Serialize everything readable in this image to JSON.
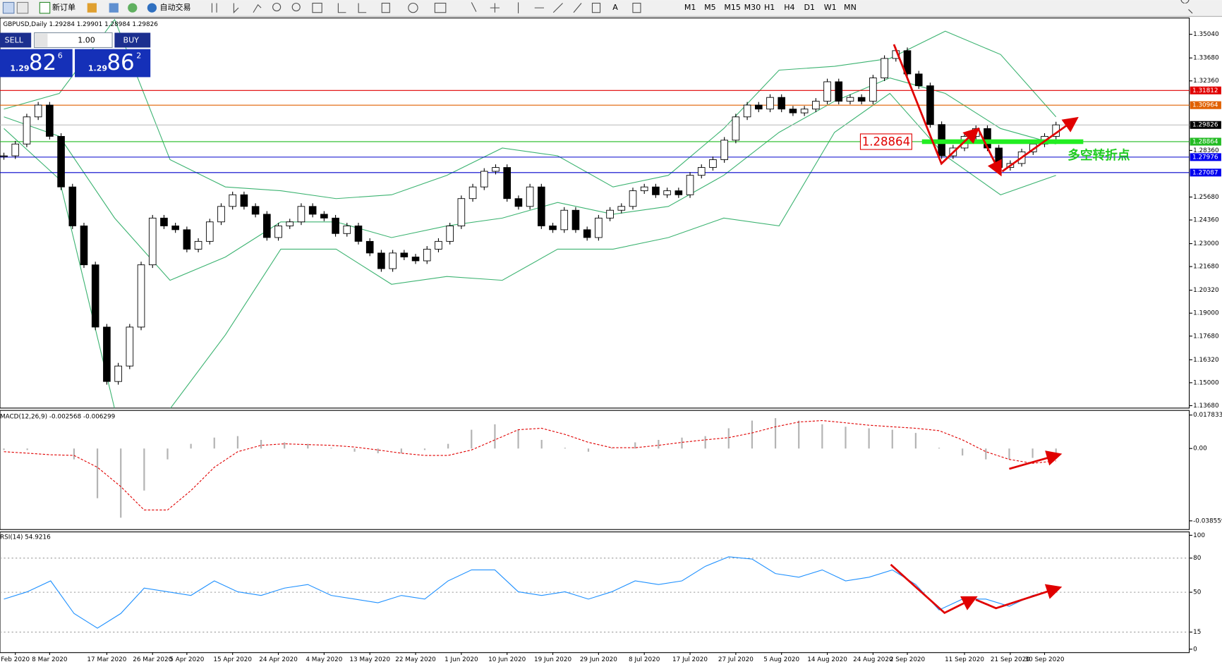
{
  "toolbar": {
    "new_order": "新订单",
    "auto_trading": "自动交易",
    "timeframes": [
      "M1",
      "M5",
      "M15",
      "M30",
      "H1",
      "H4",
      "D1",
      "W1",
      "MN"
    ]
  },
  "trade_panel": {
    "sell": "SELL",
    "buy": "BUY",
    "lot": "1.00",
    "sell_price": {
      "prefix": "1.29",
      "big": "82",
      "small": "6"
    },
    "buy_price": {
      "prefix": "1.29",
      "big": "86",
      "small": "2"
    }
  },
  "chart_data": [
    {
      "type": "candlestick",
      "title": "GBPUSD,Daily  1.29284 1.29901 1.28984 1.29826",
      "categories": [
        null,
        "Feb 2020",
        null,
        null,
        "8 Mar 2020",
        null,
        null,
        null,
        null,
        "17 Mar 2020",
        null,
        null,
        null,
        "26 Mar 2020",
        null,
        null,
        "5 Apr 2020",
        null,
        null,
        null,
        "15 Apr 2020",
        null,
        null,
        null,
        "24 Apr 2020",
        null,
        null,
        null,
        "4 May 2020",
        null,
        null,
        null,
        "13 May 2020",
        null,
        null,
        null,
        "22 May 2020",
        null,
        null,
        null,
        "1 Jun 2020",
        null,
        null,
        null,
        "10 Jun 2020",
        null,
        null,
        null,
        "19 Jun 2020",
        null,
        null,
        null,
        "29 Jun 2020",
        null,
        null,
        null,
        "8 Jul 2020",
        null,
        null,
        null,
        "17 Jul 2020",
        null,
        null,
        null,
        "27 Jul 2020",
        null,
        null,
        null,
        "5 Aug 2020",
        null,
        null,
        null,
        "14 Aug 2020",
        null,
        null,
        null,
        "24 Aug 2020",
        null,
        null,
        "2 Sep 2020",
        null,
        null,
        null,
        null,
        "11 Sep 2020",
        null,
        null,
        null,
        "21 Sep 2020",
        null,
        null,
        "30 Sep 2020",
        null
      ],
      "close": [
        1.2805,
        1.2873,
        1.3029,
        1.3097,
        1.2917,
        1.2626,
        1.2402,
        1.2178,
        1.182,
        1.1507,
        1.1596,
        1.182,
        1.2178,
        1.2447,
        1.2402,
        1.238,
        1.2268,
        1.2313,
        1.2425,
        1.2514,
        1.2581,
        1.2514,
        1.2469,
        1.2335,
        1.2402,
        1.2425,
        1.2514,
        1.2469,
        1.2447,
        1.2358,
        1.2402,
        1.2313,
        1.2246,
        1.2156,
        1.2246,
        1.2223,
        1.2201,
        1.2268,
        1.2313,
        1.2402,
        1.2559,
        1.2626,
        1.2716,
        1.2738,
        1.2559,
        1.2514,
        1.2626,
        1.2402,
        1.238,
        1.2492,
        1.238,
        1.2335,
        1.2447,
        1.2492,
        1.2514,
        1.2604,
        1.2626,
        1.2581,
        1.2604,
        1.2581,
        1.2693,
        1.2738,
        1.2783,
        1.2895,
        1.3029,
        1.3097,
        1.3074,
        1.3141,
        1.3074,
        1.3052,
        1.3074,
        1.3119,
        1.3231,
        1.3119,
        1.3141,
        1.3119,
        1.3253,
        1.3365,
        1.341,
        1.3276,
        1.3208,
        1.2985,
        1.2805,
        1.285,
        1.2917,
        1.2962,
        1.285,
        1.2738,
        1.2761,
        1.2828,
        1.2873,
        1.2917,
        1.2983
      ],
      "bands": {
        "color": "#3cb371",
        "upper": [
          1.3074,
          1.3164,
          1.3589,
          1.2783,
          1.2626,
          1.2604,
          1.2559,
          1.2581,
          1.2693,
          1.285,
          1.2805,
          1.2626,
          1.2693,
          1.2962,
          1.3298,
          1.332,
          1.3365,
          1.3522,
          1.3388,
          1.3029
        ],
        "middle": [
          1.3029,
          1.2917,
          1.2447,
          1.2089,
          1.2223,
          1.2425,
          1.2425,
          1.2335,
          1.2402,
          1.2447,
          1.2537,
          1.2469,
          1.2514,
          1.2693,
          1.294,
          1.3119,
          1.3253,
          1.3164,
          1.2962,
          1.2873
        ],
        "lower": [
          1.2962,
          1.2671,
          1.135,
          1.135,
          1.1775,
          1.2268,
          1.2268,
          1.2066,
          1.2111,
          1.2089,
          1.2268,
          1.2268,
          1.2335,
          1.2447,
          1.2402,
          1.294,
          1.3164,
          1.2805,
          1.2581,
          1.2693
        ]
      },
      "ylim": [
        1.1354,
        1.3598
      ],
      "yticks": [
        {
          "value": 1.3504,
          "label": "1.35040"
        },
        {
          "value": 1.3368,
          "label": "1.33680"
        },
        {
          "value": 1.3236,
          "label": "1.32360"
        },
        {
          "value": 1.2836,
          "label": "1.28360"
        },
        {
          "value": 1.2568,
          "label": "1.25680"
        },
        {
          "value": 1.2436,
          "label": "1.24360"
        },
        {
          "value": 1.23,
          "label": "1.23000"
        },
        {
          "value": 1.2168,
          "label": "1.21680"
        },
        {
          "value": 1.2032,
          "label": "1.20320"
        },
        {
          "value": 1.19,
          "label": "1.19000"
        },
        {
          "value": 1.1768,
          "label": "1.17680"
        },
        {
          "value": 1.1632,
          "label": "1.16320"
        },
        {
          "value": 1.15,
          "label": "1.15000"
        },
        {
          "value": 1.1368,
          "label": "1.13680"
        }
      ],
      "levels": [
        {
          "value": 1.31812,
          "color": "#e00000",
          "box": "#e00000"
        },
        {
          "value": 1.30964,
          "color": "#e06000",
          "box": "#e06000"
        },
        {
          "value": 1.29826,
          "color": "#b8b8b8",
          "box": "#000000"
        },
        {
          "value": 1.28864,
          "color": "#22bb22",
          "box": "#22bb22"
        },
        {
          "value": 1.27976,
          "color": "#0000cc",
          "box": "#0000ee"
        },
        {
          "value": 1.27087,
          "color": "#0000cc",
          "box": "#0000ee"
        }
      ],
      "annotations": [
        "1.28864",
        "多空转折点"
      ]
    },
    {
      "type": "macd",
      "title": "MACD(12,26,9) -0.002568 -0.006299",
      "histogram": [
        -0.0008,
        -0.0008,
        0,
        -0.0058,
        -0.0265,
        -0.0369,
        -0.0224,
        -0.0058,
        0.0025,
        0.0058,
        0.0066,
        0.0046,
        0.0033,
        0.0025,
        0.0004,
        -0.0017,
        -0.0025,
        -0.0025,
        -0.0008,
        0.0025,
        0.01,
        0.0129,
        0.01,
        0.0046,
        0.0004,
        -0.0017,
        0.0004,
        0.0033,
        0.0046,
        0.0058,
        0.0066,
        0.0108,
        0.0149,
        0.0162,
        0.0149,
        0.0129,
        0.0116,
        0.0108,
        0.01,
        0.0083,
        0.0004,
        -0.0037,
        -0.0058,
        -0.0058,
        -0.005,
        -0.0037
      ],
      "signal": [
        -0.0017,
        -0.0025,
        -0.0033,
        -0.0037,
        -0.01,
        -0.0203,
        -0.0328,
        -0.0328,
        -0.0224,
        -0.01,
        -0.0017,
        0.0017,
        0.0025,
        0.0021,
        0.0017,
        0.0008,
        -0.0008,
        -0.0025,
        -0.0037,
        -0.0037,
        -0.0008,
        0.0046,
        0.01,
        0.0108,
        0.0075,
        0.0033,
        0.0004,
        0.0004,
        0.0017,
        0.0033,
        0.0046,
        0.0058,
        0.0083,
        0.0116,
        0.0141,
        0.0149,
        0.0137,
        0.0124,
        0.0116,
        0.0108,
        0.0095,
        0.0046,
        -0.0017,
        -0.0058,
        -0.0079,
        -0.0066
      ],
      "colors": {
        "histogram": "#b4b4b4",
        "signal": "#e00000"
      },
      "ylim": [
        -0.0432,
        0.0203
      ],
      "yticks": [
        0.017833,
        {
          "value": 0,
          "label": "0.00"
        },
        -0.038559
      ]
    },
    {
      "type": "rsi",
      "title": "RSI(14) 54.9216",
      "values": [
        44,
        50.4,
        60,
        31.3,
        18.5,
        31.3,
        53.6,
        50.4,
        47.2,
        60,
        50.4,
        47.2,
        53.6,
        56.8,
        47.2,
        44,
        40.8,
        47.2,
        44,
        60,
        69.6,
        69.6,
        50.4,
        47.2,
        50.4,
        44,
        50.4,
        60,
        56.8,
        60,
        72.8,
        81.1,
        79.1,
        66.4,
        63.2,
        69.6,
        60,
        63.2,
        69.6,
        56.8,
        34.5,
        44,
        44,
        37.7,
        47.2,
        51.7
      ],
      "color": "#1e90ff",
      "ylim": [
        -3,
        103
      ],
      "yticks": [
        100,
        80,
        50,
        15,
        0
      ],
      "levels": [
        80,
        50,
        15
      ]
    }
  ]
}
